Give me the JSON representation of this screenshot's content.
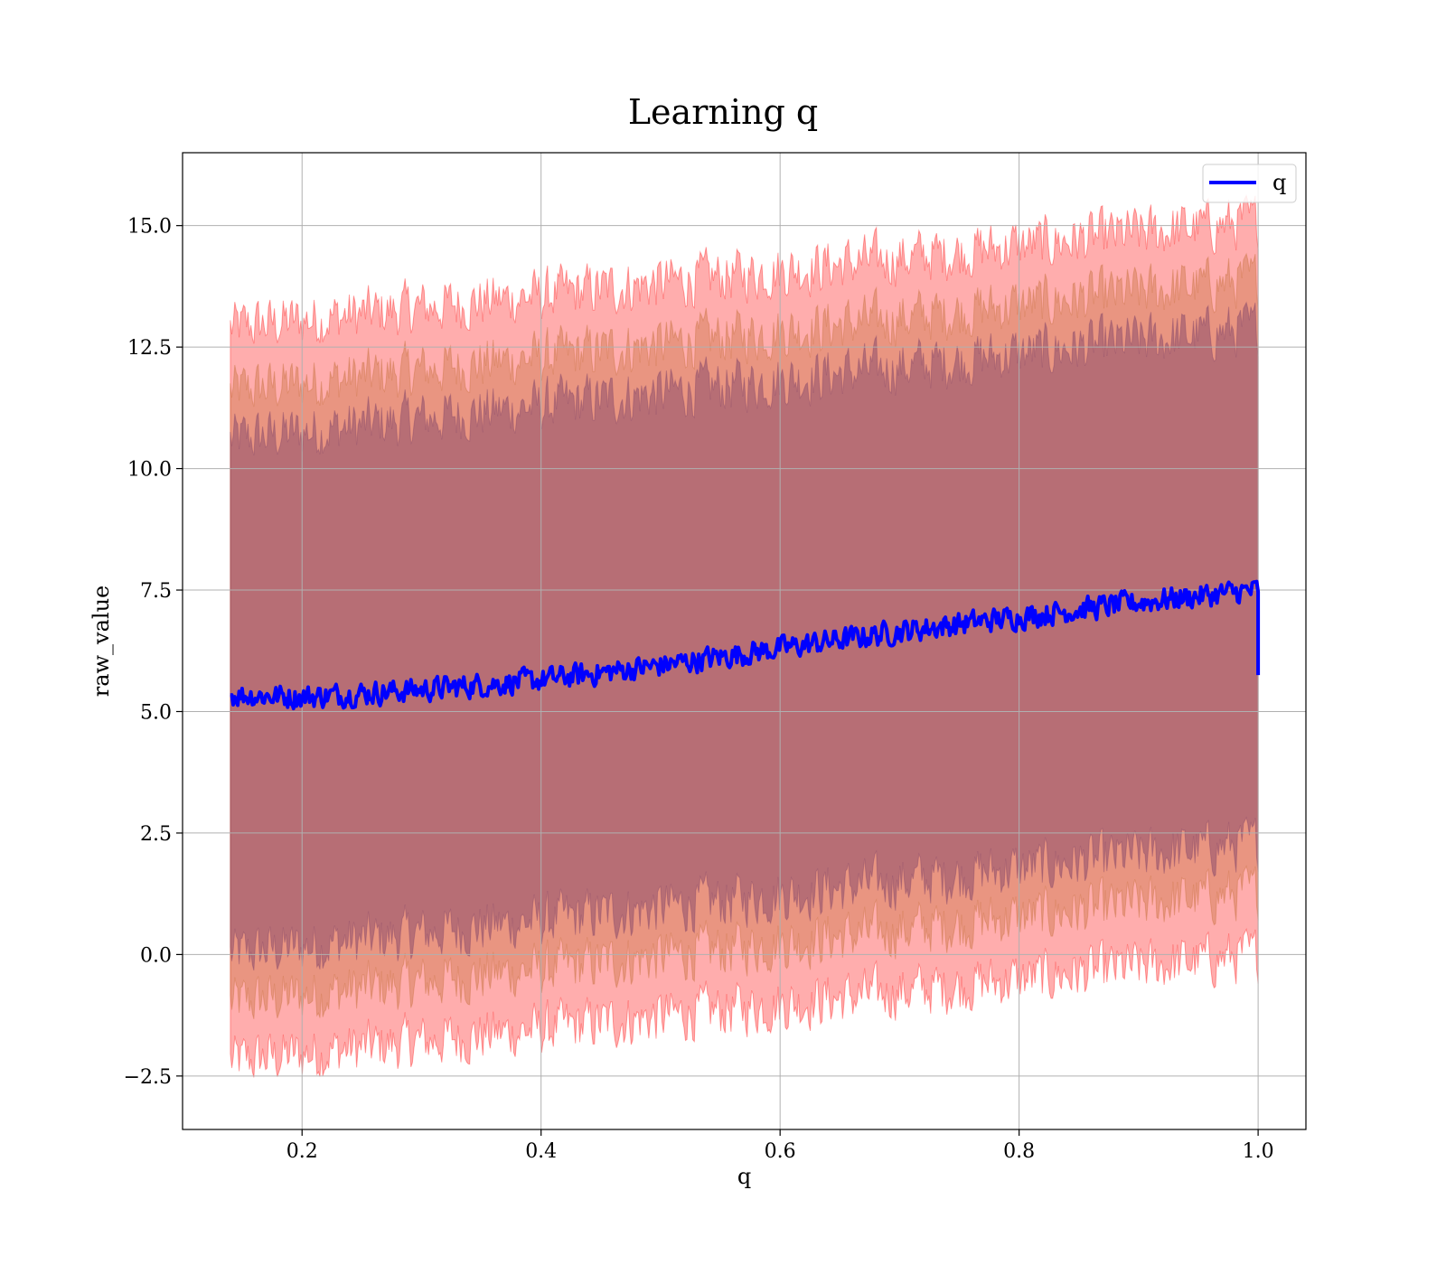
{
  "chart_data": {
    "type": "line",
    "title": "Learning q",
    "xlabel": "q",
    "ylabel": "raw_value",
    "xlim": [
      0.1,
      1.04
    ],
    "ylim": [
      -3.6,
      16.5
    ],
    "xticks": [
      0.2,
      0.4,
      0.6,
      0.8,
      1.0
    ],
    "xtick_labels": [
      "0.2",
      "0.4",
      "0.6",
      "0.8",
      "1.0"
    ],
    "yticks": [
      -2.5,
      0.0,
      2.5,
      5.0,
      7.5,
      10.0,
      12.5,
      15.0
    ],
    "ytick_labels": [
      "−2.5",
      "0.0",
      "2.5",
      "5.0",
      "7.5",
      "10.0",
      "12.5",
      "15.0"
    ],
    "grid": true,
    "legend": {
      "placement": "top-right",
      "entries": [
        "q"
      ]
    },
    "series": [
      {
        "name": "q",
        "color": "#0000ff",
        "x": [
          0.14,
          0.2,
          0.3,
          0.4,
          0.5,
          0.6,
          0.7,
          0.8,
          0.9,
          1.0
        ],
        "y": [
          5.35,
          5.3,
          5.45,
          5.65,
          5.95,
          6.3,
          6.65,
          6.95,
          7.25,
          7.5
        ],
        "final_drop": 5.75
      }
    ],
    "bands": [
      {
        "color": "#ff0000",
        "opacity": 0.32,
        "x": [
          0.14,
          1.0
        ],
        "lower": [
          -2.2,
          0.0
        ],
        "upper": [
          12.9,
          15.1
        ]
      },
      {
        "color": "#bf6a30",
        "opacity": 0.35,
        "x": [
          0.14,
          1.0
        ],
        "lower": [
          -1.0,
          1.3
        ],
        "upper": [
          11.6,
          13.9
        ]
      },
      {
        "color": "#7a3f66",
        "opacity": 0.45,
        "x": [
          0.14,
          1.0
        ],
        "lower": [
          0.0,
          2.3
        ],
        "upper": [
          10.6,
          12.9
        ]
      }
    ]
  }
}
